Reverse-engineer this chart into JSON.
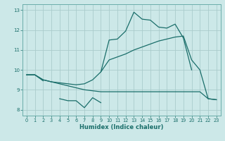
{
  "x": [
    0,
    1,
    2,
    3,
    4,
    5,
    6,
    7,
    8,
    9,
    10,
    11,
    12,
    13,
    14,
    15,
    16,
    17,
    18,
    19,
    20,
    21,
    22,
    23
  ],
  "line_jagged": [
    9.75,
    9.75,
    9.45,
    null,
    null,
    null,
    null,
    null,
    null,
    9.9,
    11.5,
    11.55,
    11.95,
    12.9,
    12.55,
    12.5,
    12.15,
    12.1,
    12.3,
    11.6,
    10.0,
    null,
    null,
    null
  ],
  "line_upper": [
    9.75,
    9.75,
    9.5,
    9.4,
    9.35,
    9.3,
    9.25,
    9.3,
    9.5,
    9.9,
    10.5,
    10.65,
    10.8,
    11.0,
    11.15,
    11.3,
    11.45,
    11.55,
    11.65,
    11.7,
    10.5,
    10.0,
    8.55,
    8.5
  ],
  "line_lower": [
    9.75,
    9.75,
    9.5,
    9.4,
    9.3,
    9.2,
    9.1,
    9.0,
    8.95,
    8.9,
    8.9,
    8.9,
    8.9,
    8.9,
    8.9,
    8.9,
    8.9,
    8.9,
    8.9,
    8.9,
    8.9,
    8.9,
    8.55,
    8.5
  ],
  "line_bottom": [
    null,
    null,
    9.45,
    null,
    8.55,
    8.45,
    8.45,
    8.1,
    8.6,
    8.35,
    null,
    null,
    null,
    null,
    null,
    null,
    null,
    null,
    null,
    null,
    null,
    null,
    null,
    null
  ],
  "bg_color": "#cce8e8",
  "grid_color": "#aacccc",
  "line_color": "#1a6e6a",
  "xlabel": "Humidex (Indice chaleur)",
  "ylim": [
    7.7,
    13.3
  ],
  "xlim": [
    -0.5,
    23.5
  ],
  "yticks": [
    8,
    9,
    10,
    11,
    12,
    13
  ],
  "xticks": [
    0,
    1,
    2,
    3,
    4,
    5,
    6,
    7,
    8,
    9,
    10,
    11,
    12,
    13,
    14,
    15,
    16,
    17,
    18,
    19,
    20,
    21,
    22,
    23
  ]
}
